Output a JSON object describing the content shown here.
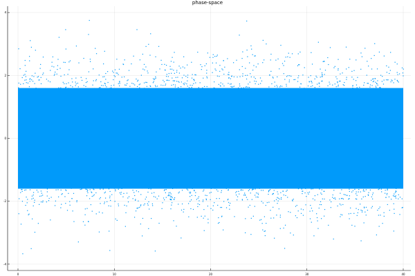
{
  "chart_data": {
    "type": "scatter",
    "title": "phase-space",
    "xlabel": "",
    "ylabel": "",
    "xlim": [
      0,
      40
    ],
    "ylim": [
      -4.2,
      4.2
    ],
    "xticks": [
      0,
      10,
      20,
      30,
      40
    ],
    "yticks": [
      -4,
      -2,
      0,
      2,
      4
    ],
    "grid": true,
    "legend": "none",
    "series": [
      {
        "color": "#009AFA",
        "marker": "point",
        "distribution": {
          "x_range": [
            0,
            40
          ],
          "y_center": 0,
          "y_spread_dense": 1.6,
          "y_extent": 3.8
        }
      }
    ]
  }
}
